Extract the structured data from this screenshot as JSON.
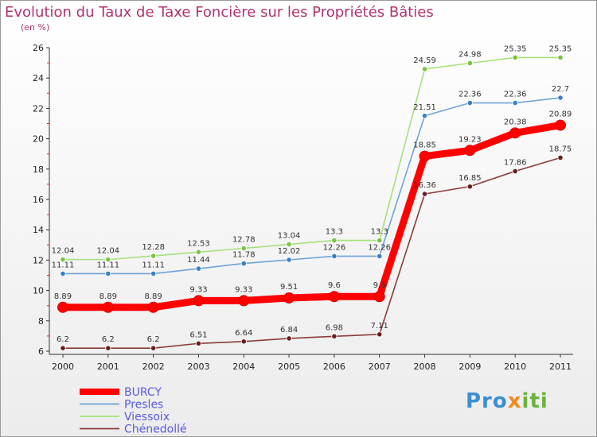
{
  "title": "Evolution du Taux de Taxe Foncière sur les Propriétés Bâties",
  "subtitle": "(en %)",
  "logo_text": "Proxiti",
  "chart_data": {
    "type": "line",
    "x": [
      "2000",
      "2001",
      "2002",
      "2003",
      "2004",
      "2005",
      "2006",
      "2007",
      "2008",
      "2009",
      "2010",
      "2011"
    ],
    "ylim": [
      6,
      26
    ],
    "yticks": [
      6,
      8,
      10,
      12,
      14,
      16,
      18,
      20,
      22,
      24,
      26
    ],
    "grid": false,
    "legend_position": "bottom-left",
    "series": [
      {
        "name": "BURCY",
        "color": "#ff0000",
        "marker": "#ff0000",
        "labels": [
          "8.89",
          "8.89",
          "8.89",
          "9.33",
          "9.33",
          "9.51",
          "9.6",
          "9.6",
          "18.85",
          "19.23",
          "20.38",
          "20.89"
        ],
        "values": [
          8.89,
          8.89,
          8.89,
          9.33,
          9.33,
          9.51,
          9.6,
          9.6,
          18.85,
          19.23,
          20.38,
          20.89
        ],
        "bold": true
      },
      {
        "name": "Presles",
        "color": "#6fa3d6",
        "marker": "#3a7fc4",
        "labels": [
          "11.11",
          "11.11",
          "11.11",
          "11.44",
          "11.78",
          "12.02",
          "12.26",
          "12.26",
          "21.51",
          "22.36",
          "22.36",
          "22.7"
        ],
        "values": [
          11.11,
          11.11,
          11.11,
          11.44,
          11.78,
          12.02,
          12.26,
          12.26,
          21.51,
          22.36,
          22.36,
          22.7
        ],
        "bold": false
      },
      {
        "name": "Viessoix",
        "color": "#a6e07c",
        "marker": "#7cc243",
        "labels": [
          "12.04",
          "12.04",
          "12.28",
          "12.53",
          "12.78",
          "13.04",
          "13.3",
          "13.3",
          "24.59",
          "24.98",
          "25.35",
          "25.35"
        ],
        "values": [
          12.04,
          12.04,
          12.28,
          12.53,
          12.78,
          13.04,
          13.3,
          13.3,
          24.59,
          24.98,
          25.35,
          25.35
        ],
        "bold": false
      },
      {
        "name": "Chénedollé",
        "color": "#8a3a3a",
        "marker": "#6a1f1f",
        "labels": [
          "6.2",
          "6.2",
          "6.2",
          "6.51",
          "6.64",
          "6.84",
          "6.98",
          "7.11",
          "16.36",
          "16.85",
          "17.86",
          "18.75"
        ],
        "values": [
          6.2,
          6.2,
          6.2,
          6.51,
          6.64,
          6.84,
          6.98,
          7.11,
          16.36,
          16.85,
          17.86,
          18.75
        ],
        "bold": false
      }
    ]
  }
}
